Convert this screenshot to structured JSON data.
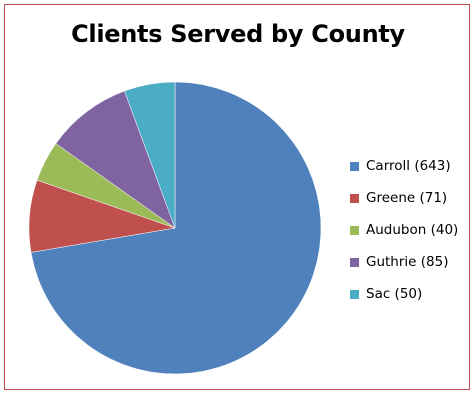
{
  "chart_data": {
    "type": "pie",
    "title": "Clients Served by County",
    "categories": [
      "Carroll",
      "Greene",
      "Audubon",
      "Guthrie",
      "Sac"
    ],
    "values": [
      643,
      71,
      40,
      85,
      50
    ],
    "legend_labels": [
      "Carroll (643)",
      "Greene (71)",
      "Audubon (40)",
      "Guthrie (85)",
      "Sac (50)"
    ],
    "colors": [
      "#4f81bd",
      "#c0504d",
      "#9bbb59",
      "#8064a2",
      "#4bacc6"
    ],
    "legend_position": "right",
    "start_angle": "top",
    "direction": "clockwise"
  }
}
